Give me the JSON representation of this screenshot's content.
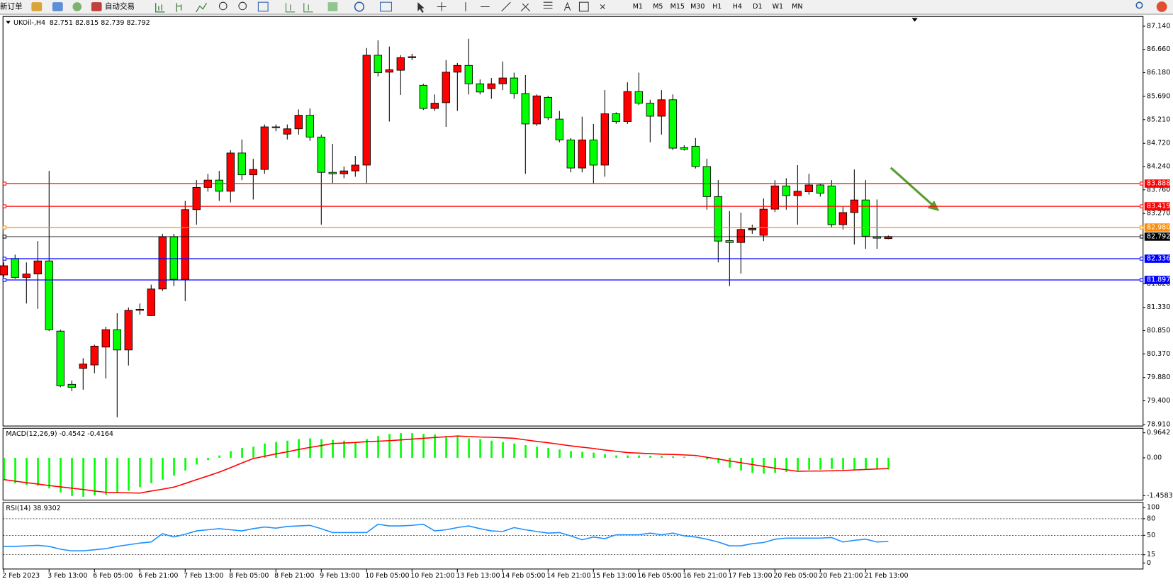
{
  "toolbar": {
    "new_order": "新订单",
    "auto_trade": "自动交易",
    "timeframes": [
      "M1",
      "M5",
      "M15",
      "M30",
      "H1",
      "H4",
      "D1",
      "W1",
      "MN"
    ]
  },
  "chart_data": [
    {
      "type": "candlestick",
      "title": "UKOil-,H4",
      "quote": "82.751 82.815 82.739 82.792",
      "categories": [
        "2 Feb 2023",
        null,
        null,
        null,
        "3 Feb 13:00",
        null,
        null,
        null,
        "6 Feb 05:00",
        null,
        null,
        null,
        "6 Feb 21:00",
        null,
        null,
        null,
        "7 Feb 13:00",
        null,
        null,
        null,
        "8 Feb 05:00",
        null,
        null,
        null,
        "8 Feb 21:00",
        null,
        null,
        null,
        "9 Feb 13:00",
        null,
        null,
        null,
        "10 Feb 05:00",
        null,
        null,
        null,
        "10 Feb 21:00",
        null,
        null,
        null,
        "13 Feb 13:00",
        null,
        null,
        null,
        "14 Feb 05:00",
        null,
        null,
        null,
        "14 Feb 21:00",
        null,
        null,
        null,
        "15 Feb 13:00",
        null,
        null,
        null,
        "16 Feb 05:00",
        null,
        null,
        null,
        "16 Feb 21:00",
        null,
        null,
        null,
        "17 Feb 13:00",
        null,
        null,
        null,
        "20 Feb 05:00",
        null,
        null,
        null,
        "20 Feb 21:00",
        null,
        null,
        null,
        "21 Feb 13:00",
        null,
        null
      ],
      "open": [
        82.0,
        82.34,
        81.95,
        82.02,
        82.29,
        80.84,
        79.74,
        80.07,
        80.14,
        80.51,
        80.87,
        80.45,
        81.27,
        81.16,
        81.71,
        82.79,
        81.91,
        83.35,
        83.81,
        83.96,
        83.73,
        84.52,
        84.07,
        84.18,
        85.05,
        84.91,
        85.02,
        85.3,
        84.85,
        84.12,
        84.09,
        84.15,
        84.27,
        86.54,
        86.19,
        86.23,
        86.49,
        85.92,
        85.44,
        85.56,
        86.19,
        86.33,
        85.95,
        85.85,
        85.95,
        86.07,
        85.75,
        85.12,
        85.67,
        85.22,
        84.79,
        84.21,
        84.79,
        84.27,
        85.33,
        85.17,
        85.79,
        85.55,
        85.28,
        85.62,
        84.63,
        84.66,
        84.24,
        83.62,
        82.71,
        82.67,
        82.93,
        82.82,
        83.36,
        83.84,
        83.64,
        83.72,
        83.86,
        83.84,
        83.04,
        83.29,
        83.55,
        82.79,
        82.751
      ],
      "high": [
        82.26,
        82.42,
        82.26,
        82.7,
        84.15,
        80.87,
        79.82,
        80.28,
        80.56,
        80.93,
        81.21,
        81.33,
        81.41,
        81.8,
        82.85,
        82.85,
        83.53,
        83.96,
        84.09,
        84.15,
        84.58,
        84.8,
        84.4,
        85.11,
        85.11,
        85.11,
        85.42,
        85.44,
        84.9,
        84.71,
        84.24,
        84.46,
        86.69,
        86.85,
        86.72,
        86.54,
        86.57,
        85.95,
        85.73,
        86.44,
        86.38,
        86.88,
        86.04,
        86.07,
        86.41,
        86.18,
        86.13,
        85.73,
        85.7,
        85.39,
        84.83,
        85.27,
        85.12,
        85.82,
        85.36,
        85.98,
        86.18,
        85.62,
        85.82,
        85.73,
        84.68,
        84.83,
        84.4,
        83.96,
        83.32,
        83.29,
        83.04,
        83.58,
        83.96,
        84.0,
        84.27,
        84.09,
        83.89,
        83.96,
        83.41,
        84.18,
        83.96,
        83.56,
        82.815
      ],
      "low": [
        81.95,
        81.92,
        81.41,
        81.3,
        80.84,
        79.68,
        79.6,
        79.63,
        79.97,
        79.86,
        79.06,
        80.13,
        81.18,
        81.15,
        81.67,
        81.77,
        81.46,
        83.04,
        83.72,
        83.53,
        83.5,
        83.96,
        83.56,
        84.09,
        84.97,
        84.8,
        84.9,
        84.77,
        83.04,
        83.9,
        84.0,
        84.03,
        83.9,
        86.1,
        85.17,
        85.72,
        86.44,
        85.41,
        85.39,
        85.06,
        85.39,
        85.73,
        85.73,
        85.64,
        85.82,
        85.64,
        84.09,
        85.08,
        85.2,
        84.74,
        84.12,
        84.12,
        83.89,
        84.03,
        85.12,
        85.12,
        85.51,
        84.74,
        84.9,
        84.58,
        84.57,
        84.2,
        83.35,
        82.26,
        81.77,
        82.03,
        82.85,
        82.7,
        83.3,
        83.35,
        83.04,
        83.66,
        83.62,
        82.98,
        82.94,
        82.63,
        82.54,
        82.54,
        82.739
      ],
      "close": [
        82.19,
        81.95,
        82.02,
        82.29,
        80.87,
        79.71,
        79.68,
        80.16,
        80.53,
        80.87,
        80.45,
        81.27,
        81.29,
        81.71,
        82.79,
        81.91,
        83.35,
        83.81,
        83.96,
        83.73,
        84.52,
        84.07,
        84.18,
        85.06,
        85.06,
        85.02,
        85.3,
        84.85,
        84.12,
        84.09,
        84.15,
        84.27,
        86.54,
        86.18,
        86.24,
        86.49,
        86.51,
        85.44,
        85.55,
        86.19,
        86.33,
        85.95,
        85.78,
        85.95,
        86.07,
        85.75,
        85.12,
        85.7,
        85.25,
        84.79,
        84.21,
        84.79,
        84.27,
        85.33,
        85.17,
        85.79,
        85.55,
        85.28,
        85.62,
        84.62,
        84.6,
        84.24,
        83.62,
        82.7,
        82.67,
        82.94,
        82.96,
        83.36,
        83.84,
        83.64,
        83.73,
        83.86,
        83.69,
        83.04,
        83.29,
        83.55,
        82.8,
        82.76,
        82.792
      ],
      "up_color": "#ff0000",
      "down_color": "#00ff00",
      "ylim": [
        78.91,
        87.14
      ],
      "yticks": [
        {
          "value": 87.14,
          "label": "87.140"
        },
        {
          "value": 86.66,
          "label": "86.660"
        },
        {
          "value": 86.18,
          "label": "86.180"
        },
        {
          "value": 85.69,
          "label": "85.690"
        },
        {
          "value": 85.21,
          "label": "85.210"
        },
        {
          "value": 84.72,
          "label": "84.720"
        },
        {
          "value": 84.24,
          "label": "84.240"
        },
        {
          "value": 83.76,
          "label": "83.760"
        },
        {
          "value": 83.27,
          "label": "83.270"
        },
        {
          "value": 81.82,
          "label": "81.820"
        },
        {
          "value": 81.33,
          "label": "81.330"
        },
        {
          "value": 80.85,
          "label": "80.850"
        },
        {
          "value": 80.37,
          "label": "80.370"
        },
        {
          "value": 79.88,
          "label": "79.880"
        },
        {
          "value": 79.4,
          "label": "79.400"
        },
        {
          "value": 78.91,
          "label": "78.910"
        }
      ],
      "levels": [
        {
          "value": 83.888,
          "label": "83.888",
          "color": "#ff0000"
        },
        {
          "value": 83.419,
          "label": "83.419",
          "color": "#ff0000"
        },
        {
          "value": 82.98,
          "label": "82.980",
          "color": "#ff8c00"
        },
        {
          "value": 82.792,
          "label": "82.792",
          "color": "#000000"
        },
        {
          "value": 82.336,
          "label": "82.336",
          "color": "#0000ff"
        },
        {
          "value": 81.897,
          "label": "81.897",
          "color": "#0000ff"
        }
      ]
    },
    {
      "type": "macd",
      "title": "MACD(12,26,9) -0.4542 -0.4164",
      "histogram": {
        "color": "#00ff00",
        "values": [
          -0.84,
          -0.98,
          -1.04,
          -1.07,
          -1.18,
          -1.33,
          -1.47,
          -1.5,
          -1.45,
          -1.42,
          -1.36,
          -1.27,
          -1.13,
          -0.98,
          -0.84,
          -0.69,
          -0.49,
          -0.26,
          -0.09,
          0.09,
          0.26,
          0.38,
          0.43,
          0.55,
          0.61,
          0.66,
          0.72,
          0.75,
          0.72,
          0.69,
          0.66,
          0.61,
          0.72,
          0.84,
          0.92,
          0.95,
          0.95,
          0.92,
          0.9,
          0.84,
          0.81,
          0.75,
          0.72,
          0.66,
          0.61,
          0.55,
          0.49,
          0.43,
          0.38,
          0.32,
          0.26,
          0.23,
          0.2,
          0.14,
          0.09,
          0.09,
          0.09,
          0.08,
          0.07,
          0.06,
          0.04,
          0.01,
          -0.06,
          -0.2,
          -0.38,
          -0.49,
          -0.58,
          -0.61,
          -0.58,
          -0.55,
          -0.49,
          -0.46,
          -0.46,
          -0.43,
          -0.46,
          -0.46,
          -0.43,
          -0.43,
          -0.4542
        ]
      },
      "signal": {
        "color": "#ff0000",
        "values": [
          -0.84,
          -0.9,
          -0.96,
          -1.01,
          -1.07,
          -1.12,
          -1.17,
          -1.22,
          -1.28,
          -1.33,
          -1.34,
          -1.35,
          -1.36,
          -1.28,
          -1.21,
          -1.13,
          -0.99,
          -0.84,
          -0.7,
          -0.55,
          -0.38,
          -0.2,
          -0.03,
          0.06,
          0.15,
          0.23,
          0.32,
          0.4,
          0.47,
          0.55,
          0.57,
          0.59,
          0.62,
          0.64,
          0.66,
          0.69,
          0.72,
          0.75,
          0.78,
          0.81,
          0.84,
          0.82,
          0.8,
          0.79,
          0.77,
          0.75,
          0.69,
          0.63,
          0.58,
          0.52,
          0.46,
          0.41,
          0.36,
          0.3,
          0.25,
          0.2,
          0.18,
          0.16,
          0.14,
          0.13,
          0.11,
          0.09,
          0.02,
          -0.05,
          -0.12,
          -0.19,
          -0.26,
          -0.33,
          -0.4,
          -0.46,
          -0.52,
          -0.51,
          -0.51,
          -0.5,
          -0.49,
          -0.47,
          -0.45,
          -0.43,
          -0.4164
        ]
      },
      "ylim": [
        -1.4583,
        0.9642
      ],
      "yticks": [
        0.9642,
        {
          "value": 0,
          "label": "0.00"
        },
        -1.4583
      ]
    },
    {
      "type": "line",
      "title": "RSI(14) 38.9302",
      "color": "#1e90ff",
      "values": [
        30,
        30,
        31,
        32,
        30,
        25,
        22,
        22,
        24,
        26,
        30,
        33,
        36,
        38,
        53,
        47,
        52,
        58,
        60,
        62,
        60,
        58,
        62,
        65,
        63,
        66,
        67,
        68,
        62,
        55,
        55,
        55,
        55,
        70,
        67,
        67,
        68,
        70,
        58,
        60,
        64,
        67,
        62,
        58,
        57,
        64,
        60,
        57,
        54,
        55,
        49,
        42,
        47,
        44,
        51,
        51,
        51,
        54,
        51,
        54,
        49,
        47,
        43,
        38,
        31,
        31,
        35,
        37,
        43,
        45,
        45,
        45,
        45,
        46,
        38,
        41,
        43,
        38,
        38.9302
      ],
      "ylim": [
        0,
        100
      ],
      "yticks": [
        100,
        80,
        50,
        15,
        0
      ]
    }
  ]
}
